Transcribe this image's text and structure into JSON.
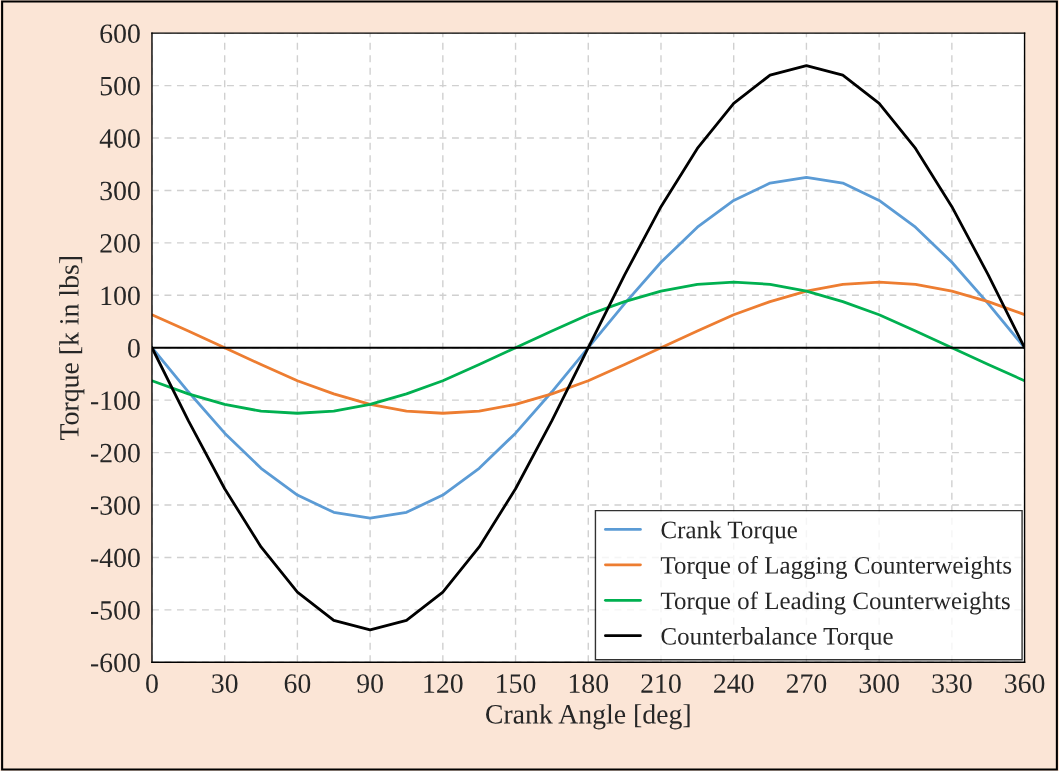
{
  "chart_data": {
    "type": "line",
    "xlabel": "Crank Angle [deg]",
    "ylabel": "Torque [k in lbs]",
    "x": [
      0,
      15,
      30,
      45,
      60,
      75,
      90,
      105,
      120,
      135,
      150,
      165,
      180,
      195,
      210,
      225,
      240,
      255,
      270,
      285,
      300,
      315,
      330,
      345,
      360
    ],
    "series": [
      {
        "name": "Crank Torque",
        "color": "#5b9bd5",
        "values": [
          0,
          -84,
          -163,
          -230,
          -281,
          -314,
          -325,
          -314,
          -281,
          -230,
          -163,
          -84,
          0,
          84,
          163,
          230,
          281,
          314,
          325,
          314,
          281,
          230,
          163,
          84,
          0
        ]
      },
      {
        "name": "Torque of Lagging Counterweights",
        "color": "#ed7d31",
        "values": [
          63,
          32,
          0,
          -32,
          -63,
          -88,
          -108,
          -121,
          -125,
          -121,
          -108,
          -88,
          -63,
          -32,
          0,
          32,
          63,
          88,
          108,
          121,
          125,
          121,
          108,
          88,
          63
        ]
      },
      {
        "name": "Torque of Leading Counterweights",
        "color": "#00b050",
        "values": [
          -63,
          -88,
          -108,
          -121,
          -125,
          -121,
          -108,
          -88,
          -63,
          -32,
          0,
          32,
          63,
          88,
          108,
          121,
          125,
          121,
          108,
          88,
          63,
          32,
          0,
          -32,
          -63
        ]
      },
      {
        "name": "Counterbalance Torque",
        "color": "#000000",
        "values": [
          0,
          -139,
          -269,
          -380,
          -466,
          -520,
          -538,
          -520,
          -466,
          -380,
          -269,
          -139,
          0,
          139,
          269,
          380,
          466,
          520,
          538,
          520,
          466,
          380,
          269,
          139,
          0
        ]
      }
    ],
    "xlim": [
      0,
      360
    ],
    "xticks": [
      0,
      30,
      60,
      90,
      120,
      150,
      180,
      210,
      240,
      270,
      300,
      330,
      360
    ],
    "ylim": [
      -600,
      600
    ],
    "yticks": [
      -600,
      -500,
      -400,
      -300,
      -200,
      -100,
      0,
      100,
      200,
      300,
      400,
      500,
      600
    ],
    "ref_lines": [
      {
        "axis": "y",
        "value": 0,
        "color": "#000000"
      }
    ],
    "grid": true,
    "legend": "bottom right",
    "marker": "none",
    "line_style": "solid"
  }
}
